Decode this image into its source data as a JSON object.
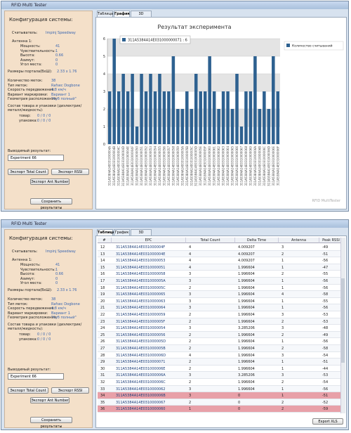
{
  "app_title": "RFID Multi Tester",
  "config": {
    "heading": "Конфигурация системы:",
    "reader": {
      "label": "Считыватель:",
      "value": "Impinj Speedway"
    },
    "antenna": {
      "label": "Антенна 1:",
      "rows": [
        {
          "label": "Мощность:",
          "value": 41
        },
        {
          "label": "Чувствительность:",
          "value": 1
        },
        {
          "label": "Высота:",
          "value": 0.66
        },
        {
          "label": "Азимут:",
          "value": 0
        },
        {
          "label": "Угол места:",
          "value": 0
        }
      ]
    },
    "portal": {
      "label": "Размеры портала(ВxШ):",
      "value": "2.33 x 1.76"
    },
    "tags": [
      {
        "label": "Количество меток:",
        "value": 38
      },
      {
        "label": "Тип меток:",
        "value": "Rafsec Dogbone"
      },
      {
        "label": "Скорость передвижения:",
        "value": "4.8 км/ч"
      },
      {
        "label": "Вариант маркировки:",
        "value": "Вариант 1"
      },
      {
        "label": "Геометрия расположения:",
        "value": "\"Куб полный\""
      }
    ],
    "composition": {
      "label": "Состав товара и упаковки (диэлектрик/металл/жидкость):",
      "rows": [
        {
          "label": "товар:",
          "value": "0  /  0  /  0"
        },
        {
          "label": "упаковка:",
          "value": "0  /  0  /  0"
        }
      ]
    },
    "result_label": "Выводимый результат:",
    "experiment": "Experiment 66",
    "buttons": [
      "Экспорт Total Count",
      "Экспорт RSSI",
      "Экспорт Ant Number"
    ],
    "save": "Сохранить результаты"
  },
  "tabs": [
    "Таблица",
    "График",
    "3D"
  ],
  "chart_data": {
    "type": "bar",
    "title": "Результат эксперимента",
    "tooltip": "311A5384A14E031000000071 : 6",
    "footer": "RFID MultiTester",
    "categories": [
      "311A5384A14E031000004A",
      "311A5384A14E031000004B",
      "311A5384A14E031000004C",
      "311A5384A14E031000004D",
      "311A5384A14E031000004E",
      "311A5384A14E031000004F",
      "311A5384A14E0310000050",
      "311A5384A14E0310000051",
      "311A5384A14E0310000052",
      "311A5384A14E0310000053",
      "311A5384A14E0310000054",
      "311A5384A14E0310000055",
      "311A5384A14E0310000056",
      "311A5384A14E0310000057",
      "311A5384A14E0310000058",
      "311A5384A14E0310000059",
      "311A5384A14E031000005A",
      "311A5384A14E031000005B",
      "311A5384A14E031000005C",
      "311A5384A14E031000005D",
      "311A5384A14E031000005E",
      "311A5384A14E031000005F",
      "311A5384A14E0310000060",
      "311A5384A14E0310000061",
      "311A5384A14E0310000062",
      "311A5384A14E0310000063",
      "311A5384A14E0310000064",
      "311A5384A14E0310000065",
      "311A5384A14E0310000066",
      "311A5384A14E0310000067",
      "311A5384A14E0310000068",
      "311A5384A14E0310000069",
      "311A5384A14E031000006A",
      "311A5384A14E031000006B",
      "311A5384A14E031000006C",
      "311A5384A14E031000006D",
      "311A5384A14E031000006E",
      "311A5384A14E031000006F"
    ],
    "series": [
      {
        "name": "Количество считываний",
        "color": "#2e6190",
        "values": [
          3,
          6,
          3,
          4,
          3,
          4,
          1,
          4,
          3,
          4,
          3,
          4,
          3,
          3,
          5,
          2,
          2,
          3,
          2,
          4,
          3,
          3,
          5,
          3,
          2,
          3,
          3,
          2,
          4,
          1,
          3,
          3,
          5,
          2,
          3,
          2,
          5,
          3
        ]
      }
    ],
    "ylim": [
      0,
      6
    ],
    "yticks": [
      0,
      1,
      2,
      3,
      4,
      5,
      6
    ],
    "grid": true
  },
  "table": {
    "columns": [
      "#",
      "EPC",
      "Total Count",
      "Delta Time",
      "Antenna",
      "Peak RSSI"
    ],
    "rows": [
      [
        12,
        "311A5384A14E031000004F",
        4,
        4.009207,
        3,
        -49
      ],
      [
        13,
        "311A5384A14E031000004E",
        4,
        4.009207,
        2,
        -51
      ],
      [
        14,
        "311A5384A14E0310000053",
        4,
        4.009207,
        1,
        -56
      ],
      [
        15,
        "311A5384A14E0310000051",
        4,
        1.996604,
        1,
        -47
      ],
      [
        16,
        "311A5384A14E0310000058",
        3,
        1.996604,
        2,
        -55
      ],
      [
        17,
        "311A5384A14E031000005A",
        3,
        1.996604,
        1,
        -56
      ],
      [
        18,
        "311A5384A14E031000005C",
        2,
        1.996604,
        1,
        -56
      ],
      [
        19,
        "311A5384A14E0310000065",
        3,
        1.996604,
        4,
        -58
      ],
      [
        20,
        "311A5384A14E0310000063",
        3,
        1.996604,
        1,
        -55
      ],
      [
        21,
        "311A5384A14E0310000064",
        3,
        1.996604,
        1,
        -56
      ],
      [
        22,
        "311A5384A14E0310000059",
        2,
        1.996604,
        3,
        -53
      ],
      [
        23,
        "311A5384A14E031000005F",
        2,
        1.996604,
        2,
        -53
      ],
      [
        24,
        "311A5384A14E0310000054",
        3,
        3.285206,
        3,
        -48
      ],
      [
        25,
        "311A5384A14E0310000056",
        2,
        1.996604,
        2,
        -49
      ],
      [
        26,
        "311A5384A14E031000005D",
        2,
        1.996604,
        1,
        -56
      ],
      [
        27,
        "311A5384A14E031000005B",
        2,
        1.996604,
        2,
        -58
      ],
      [
        28,
        "311A5384A14E031000006D",
        4,
        1.996604,
        3,
        -54
      ],
      [
        29,
        "311A5384A14E0310000071",
        2,
        1.996604,
        1,
        -51
      ],
      [
        30,
        "311A5384A14E031000006E",
        2,
        1.996604,
        1,
        -44
      ],
      [
        31,
        "311A5384A14E031000006A",
        3,
        3.285206,
        3,
        -53
      ],
      [
        32,
        "311A5384A14E031000006C",
        2,
        1.996604,
        2,
        -54
      ],
      [
        33,
        "311A5384A14E0310000062",
        3,
        1.996604,
        1,
        -56
      ],
      [
        34,
        "311A5384A14E031000006B",
        3,
        0,
        1,
        -51
      ],
      [
        35,
        "311A5384A14E0310000067",
        2,
        0,
        2,
        -52
      ],
      [
        36,
        "311A5384A14E0310000060",
        1,
        0,
        2,
        -59
      ]
    ],
    "highlight_rows": [
      22,
      24
    ],
    "highlight_color": "#e8a0a8"
  },
  "export_button": "Export XLS"
}
